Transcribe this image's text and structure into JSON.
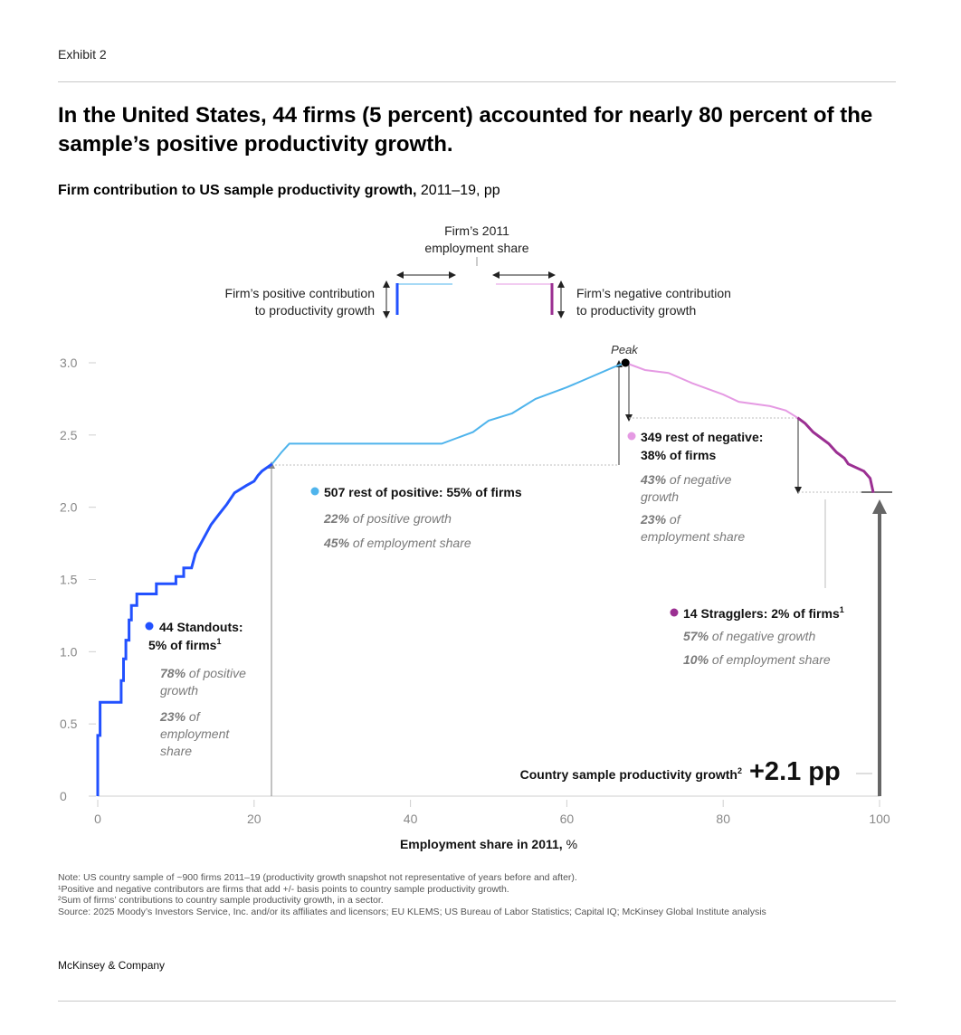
{
  "exhibit_label": "Exhibit 2",
  "headline": "In the United States, 44 firms (5 percent) accounted for nearly 80 percent of the sample’s positive productivity growth.",
  "subtitle": {
    "bold": "Firm contribution to US sample productivity growth,",
    "rest": " 2011–19, pp"
  },
  "legend_key": {
    "employment_share_line1": "Firm’s 2011",
    "employment_share_line2": "employment share",
    "positive_line1": "Firm’s positive contribution",
    "positive_line2": "to productivity growth",
    "negative_line1": "Firm’s negative contribution",
    "negative_line2": "to productivity growth"
  },
  "annotations": {
    "peak": "Peak",
    "standouts": {
      "title1": "44 Standouts:",
      "title2": "5% of firms",
      "title_sup": "1",
      "s1_pct": "78%",
      "s1_line1_rest": " of positive",
      "s1_line2": "growth",
      "s2_pct": "23%",
      "s2_line1_rest": " of",
      "s2_line2": "employment",
      "s2_line3": "share"
    },
    "rest_positive": {
      "title": "507 rest of positive: 55% of firms",
      "s1_pct": "22%",
      "s1_rest": " of positive growth",
      "s2_pct": "45%",
      "s2_rest": " of employment share"
    },
    "rest_negative": {
      "title1": "349 rest of negative:",
      "title2": "38% of firms",
      "s1_pct": "43%",
      "s1_line1_rest": " of negative",
      "s1_line2": "growth",
      "s2_pct": "23%",
      "s2_line1_rest": " of",
      "s2_line2": "employment share"
    },
    "stragglers": {
      "title": "14 Stragglers: 2% of firms",
      "title_sup": "1",
      "s1_pct": "57%",
      "s1_rest": " of negative growth",
      "s2_pct": "10%",
      "s2_rest": " of employment share"
    },
    "country_total": {
      "label": "Country sample productivity growth",
      "sup": "2",
      "value": "+2.1 pp"
    }
  },
  "notes": [
    "Note: US country sample of ~900 firms 2011–19 (productivity growth snapshot not representative of years before and after).",
    "¹Positive and negative contributors are firms that add +/- basis points to country sample productivity growth.",
    "²Sum of firms’ contributions to country sample productivity growth, in a sector.",
    "Source: 2025 Moody’s Investors Service, Inc. and/or its affiliates and licensors; EU KLEMS; US Bureau of Labor Statistics; Capital IQ; McKinsey Global Institute analysis"
  ],
  "brand": "McKinsey & Company",
  "colors": {
    "standouts": "#2251ff",
    "rest_positive": "#4fb4ec",
    "rest_negative": "#e59ae3",
    "stragglers": "#9b2f92",
    "gray_text": "#7a7a7a",
    "arrow_gray": "#666666"
  },
  "chart_data": {
    "type": "line",
    "xlabel": "Employment share in 2011,",
    "xlabel_unit": "%",
    "ylabel": "",
    "xlim": [
      0,
      100
    ],
    "ylim": [
      0,
      3.0
    ],
    "x_ticks": [
      0,
      20,
      40,
      60,
      80,
      100
    ],
    "y_ticks": [
      0,
      0.5,
      1.0,
      1.5,
      2.0,
      2.5,
      3.0
    ],
    "y_tick_labels": [
      "0",
      "0.5",
      "1.0",
      "1.5",
      "2.0",
      "2.5",
      "3.0"
    ],
    "grid": false,
    "series": [
      {
        "name": "44 Standouts",
        "color_key": "standouts",
        "points": [
          [
            0,
            0
          ],
          [
            0,
            0.42
          ],
          [
            0.3,
            0.42
          ],
          [
            0.3,
            0.65
          ],
          [
            3,
            0.65
          ],
          [
            3,
            0.8
          ],
          [
            3.3,
            0.8
          ],
          [
            3.3,
            0.95
          ],
          [
            3.6,
            0.95
          ],
          [
            3.6,
            1.08
          ],
          [
            4,
            1.08
          ],
          [
            4,
            1.22
          ],
          [
            4.3,
            1.22
          ],
          [
            4.3,
            1.32
          ],
          [
            5,
            1.32
          ],
          [
            5,
            1.4
          ],
          [
            7.5,
            1.4
          ],
          [
            7.5,
            1.47
          ],
          [
            10,
            1.47
          ],
          [
            10,
            1.52
          ],
          [
            11,
            1.52
          ],
          [
            11,
            1.58
          ],
          [
            12,
            1.58
          ],
          [
            12.5,
            1.68
          ],
          [
            13.5,
            1.78
          ],
          [
            14.5,
            1.88
          ],
          [
            15.5,
            1.95
          ],
          [
            16.5,
            2.02
          ],
          [
            17.5,
            2.1
          ],
          [
            19,
            2.15
          ],
          [
            20,
            2.18
          ],
          [
            20.5,
            2.22
          ],
          [
            21,
            2.25
          ],
          [
            22.3,
            2.3
          ]
        ]
      },
      {
        "name": "507 rest of positive",
        "color_key": "rest_positive",
        "points": [
          [
            22.3,
            2.3
          ],
          [
            23.5,
            2.38
          ],
          [
            24.5,
            2.44
          ],
          [
            44,
            2.44
          ],
          [
            46,
            2.48
          ],
          [
            48,
            2.52
          ],
          [
            50,
            2.6
          ],
          [
            53,
            2.65
          ],
          [
            56,
            2.75
          ],
          [
            60,
            2.83
          ],
          [
            63,
            2.9
          ],
          [
            66,
            2.97
          ],
          [
            67.5,
            3.0
          ]
        ]
      },
      {
        "name": "349 rest of negative",
        "color_key": "rest_negative",
        "points": [
          [
            67.5,
            3.0
          ],
          [
            70,
            2.95
          ],
          [
            73,
            2.93
          ],
          [
            76,
            2.86
          ],
          [
            80,
            2.78
          ],
          [
            82,
            2.73
          ],
          [
            86,
            2.7
          ],
          [
            88,
            2.67
          ],
          [
            89.5,
            2.62
          ]
        ]
      },
      {
        "name": "14 Stragglers",
        "color_key": "stragglers",
        "points": [
          [
            89.5,
            2.62
          ],
          [
            90.5,
            2.58
          ],
          [
            91.5,
            2.52
          ],
          [
            92.5,
            2.48
          ],
          [
            93.5,
            2.44
          ],
          [
            94.5,
            2.38
          ],
          [
            95.5,
            2.34
          ],
          [
            96,
            2.3
          ],
          [
            98,
            2.25
          ],
          [
            98.8,
            2.2
          ],
          [
            99.2,
            2.1
          ]
        ]
      }
    ],
    "annotations": [
      {
        "type": "peak",
        "x": 67.5,
        "y": 3.0
      },
      {
        "type": "country_total",
        "x": 100,
        "y": 2.1
      }
    ]
  }
}
